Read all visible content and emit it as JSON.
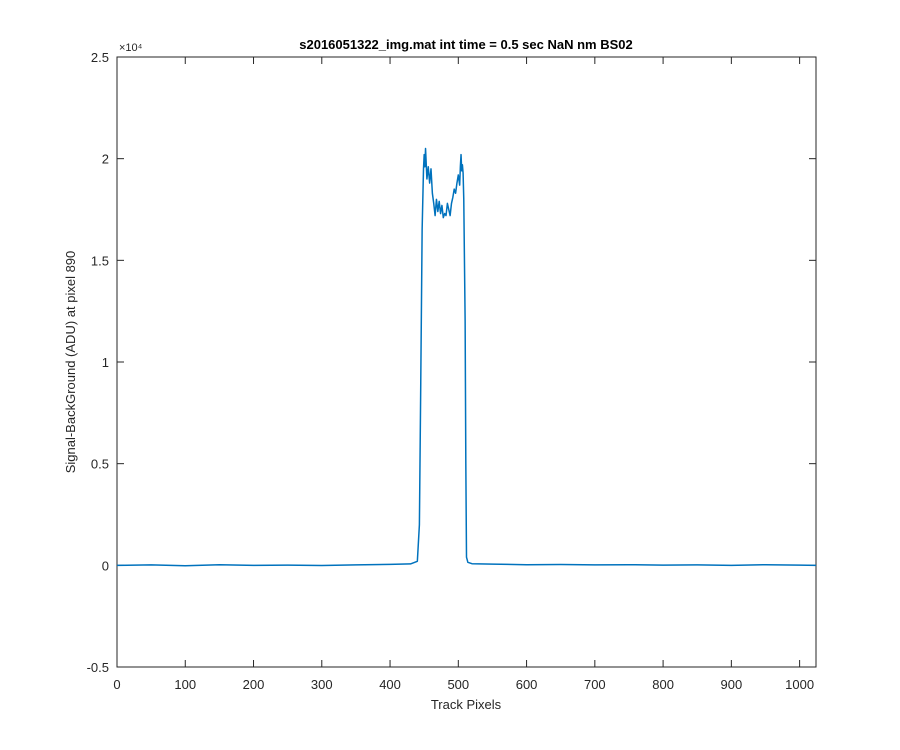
{
  "chart_data": {
    "type": "line",
    "title": "s2016051322_img.mat int time = 0.5 sec  NaN nm BS02",
    "xlabel": "Track Pixels",
    "ylabel": "Signal-BackGround (ADU) at pixel 890",
    "xlim": [
      0,
      1024
    ],
    "ylim": [
      -5000,
      25000
    ],
    "x_ticks": [
      0,
      100,
      200,
      300,
      400,
      500,
      600,
      700,
      800,
      900,
      1000
    ],
    "x_tick_labels": [
      "0",
      "100",
      "200",
      "300",
      "400",
      "500",
      "600",
      "700",
      "800",
      "900",
      "1000"
    ],
    "y_ticks": [
      -5000,
      0,
      5000,
      10000,
      15000,
      20000,
      25000
    ],
    "y_tick_labels": [
      "-0.5",
      "0",
      "0.5",
      "1",
      "1.5",
      "2",
      "2.5"
    ],
    "y_exponent_label": "×10⁴",
    "grid": false,
    "line_color": "#0072BD",
    "series": [
      {
        "x": [
          0,
          50,
          100,
          150,
          200,
          250,
          300,
          350,
          400,
          430,
          440,
          443,
          445,
          447,
          449,
          450,
          451,
          452,
          454,
          456,
          458,
          460,
          462,
          464,
          466,
          468,
          470,
          472,
          474,
          476,
          478,
          480,
          482,
          484,
          486,
          488,
          490,
          492,
          494,
          496,
          498,
          500,
          502,
          503,
          504,
          505,
          506,
          507,
          508,
          510,
          511,
          512,
          514,
          520,
          550,
          600,
          650,
          700,
          750,
          800,
          850,
          900,
          950,
          1000,
          1024
        ],
        "y": [
          0,
          20,
          -20,
          30,
          0,
          10,
          -10,
          20,
          50,
          70,
          200,
          2000,
          9000,
          16500,
          19500,
          20200,
          19600,
          20500,
          19000,
          19600,
          18800,
          19500,
          18300,
          17800,
          17200,
          18000,
          17400,
          17900,
          17300,
          17700,
          17100,
          17300,
          17200,
          17800,
          17500,
          17200,
          17800,
          18100,
          18500,
          18300,
          18800,
          19200,
          18700,
          19600,
          20200,
          19400,
          19700,
          19300,
          18000,
          12000,
          5000,
          400,
          150,
          80,
          60,
          30,
          40,
          20,
          30,
          10,
          20,
          0,
          30,
          10,
          0
        ]
      }
    ]
  }
}
